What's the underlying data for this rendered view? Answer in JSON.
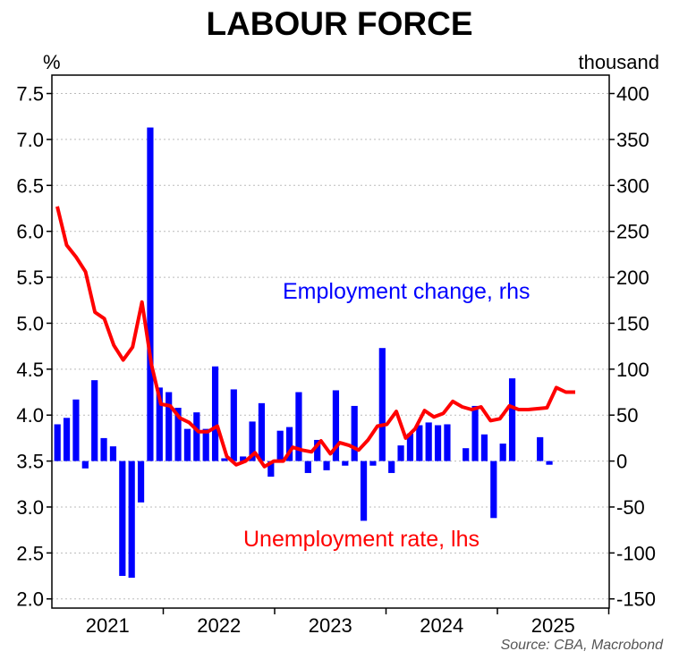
{
  "title": "LABOUR FORCE",
  "unit_left": "%",
  "unit_right": "thousand",
  "source": "Source: CBA, Macrobond",
  "colors": {
    "bars": "#0000ff",
    "line": "#ff0000",
    "grid": "#bbbbbb"
  },
  "chart_data": {
    "type": "bar+line",
    "x_tick_labels": [
      "2021",
      "2022",
      "2023",
      "2024",
      "2025"
    ],
    "left_axis": {
      "ylim": [
        1.9,
        7.7
      ],
      "ticks": [
        "2.0",
        "2.5",
        "3.0",
        "3.5",
        "4.0",
        "4.5",
        "5.0",
        "5.5",
        "6.0",
        "6.5",
        "7.0",
        "7.5"
      ]
    },
    "right_axis": {
      "ylim": [
        -160,
        420
      ],
      "ticks": [
        "-150",
        "-100",
        "-50",
        "0",
        "50",
        "100",
        "150",
        "200",
        "250",
        "300",
        "350",
        "400"
      ]
    },
    "grid": true,
    "series": [
      {
        "name": "Employment change, rhs",
        "kind": "bar",
        "axis": "right",
        "values": [
          40,
          47,
          67,
          -8,
          88,
          25,
          16,
          -125,
          -127,
          -45,
          363,
          80,
          75,
          58,
          35,
          53,
          35,
          103,
          3,
          78,
          5,
          43,
          63,
          -17,
          33,
          37,
          75,
          -13,
          23,
          -10,
          77,
          -5,
          60,
          -65,
          -5,
          123,
          -13,
          17,
          30,
          39,
          42,
          39,
          40,
          0,
          14,
          60,
          29,
          -62,
          19,
          90,
          0,
          0,
          26,
          -4
        ]
      },
      {
        "name": "Unemployment rate, lhs",
        "kind": "line",
        "axis": "left",
        "values": [
          6.27,
          5.85,
          5.72,
          5.56,
          5.12,
          5.05,
          4.76,
          4.6,
          4.74,
          5.23,
          4.55,
          4.12,
          4.1,
          3.97,
          3.92,
          3.82,
          3.82,
          3.88,
          3.55,
          3.46,
          3.5,
          3.59,
          3.44,
          3.5,
          3.5,
          3.65,
          3.62,
          3.6,
          3.72,
          3.58,
          3.7,
          3.67,
          3.62,
          3.73,
          3.88,
          3.9,
          4.04,
          3.75,
          3.85,
          4.05,
          3.98,
          4.02,
          4.15,
          4.09,
          4.06,
          4.09,
          3.94,
          3.96,
          4.1,
          4.06,
          4.06,
          4.07,
          4.08,
          4.3,
          4.25,
          4.25
        ]
      }
    ],
    "annotations": [
      "Employment change, rhs",
      "Unemployment rate, lhs"
    ]
  }
}
